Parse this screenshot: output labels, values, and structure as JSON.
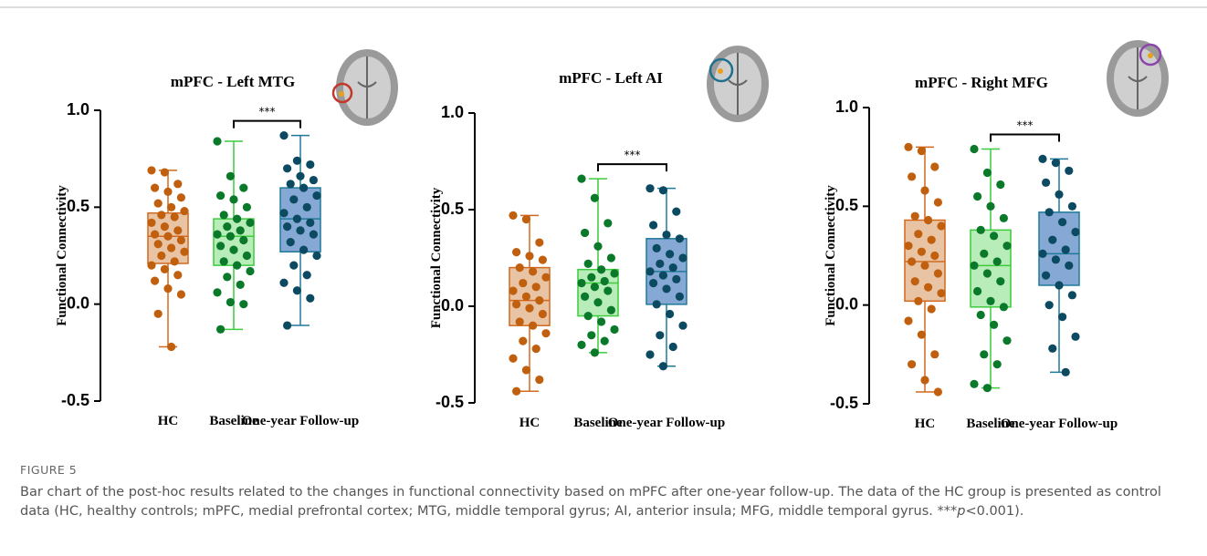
{
  "figure_label": "FIGURE 5",
  "caption": {
    "text": "Bar chart of the post-hoc results related to the changes in functional connectivity based on mPFC after one-year follow-up. The data of the HC group is presented as control data (HC, healthy controls; mPFC, medial prefrontal cortex; MTG, middle temporal gyrus; AI, anterior insula; MFG, middle temporal gyrus. ***",
    "italic": "p",
    "after": "<0.001)."
  },
  "chart_data": [
    {
      "type": "box",
      "title": "mPFC - Left MTG",
      "ylabel": "Functional Connectivity",
      "annotation": "***",
      "categories": [
        "HC",
        "Baseline",
        "One-year Follow-up"
      ],
      "ylim": [
        -0.5,
        1.0
      ],
      "yticks": [
        -0.5,
        {
          "value": 0,
          "label": "0.0"
        },
        0.5,
        {
          "value": 1,
          "label": "1.0"
        }
      ],
      "boxes": [
        {
          "color": "#d2691e",
          "fill": "#e9c4a4",
          "point_color": "#c0600f",
          "min": -0.22,
          "q1": 0.21,
          "median": 0.35,
          "q3": 0.47,
          "max": 0.69,
          "points": [
            0.69,
            0.68,
            0.62,
            0.6,
            0.58,
            0.55,
            0.52,
            0.5,
            0.48,
            0.46,
            0.45,
            0.42,
            0.4,
            0.38,
            0.36,
            0.35,
            0.33,
            0.31,
            0.29,
            0.27,
            0.25,
            0.22,
            0.2,
            0.18,
            0.15,
            0.12,
            0.08,
            0.05,
            -0.05,
            -0.22
          ]
        },
        {
          "color": "#3ccc3c",
          "fill": "#b8ecb8",
          "point_color": "#0a7a2a",
          "min": -0.13,
          "q1": 0.2,
          "median": 0.35,
          "q3": 0.44,
          "max": 0.84,
          "points": [
            0.84,
            0.66,
            0.6,
            0.56,
            0.54,
            0.5,
            0.46,
            0.44,
            0.42,
            0.4,
            0.38,
            0.36,
            0.35,
            0.33,
            0.3,
            0.28,
            0.25,
            0.22,
            0.2,
            0.17,
            0.14,
            0.1,
            0.06,
            0.01,
            0.0,
            -0.13
          ]
        },
        {
          "color": "#1f7a9a",
          "fill": "#86a8d4",
          "point_color": "#0b4a60",
          "min": -0.11,
          "q1": 0.27,
          "median": 0.44,
          "q3": 0.6,
          "max": 0.87,
          "points": [
            0.87,
            0.74,
            0.72,
            0.7,
            0.66,
            0.64,
            0.62,
            0.6,
            0.56,
            0.54,
            0.5,
            0.47,
            0.44,
            0.42,
            0.4,
            0.38,
            0.36,
            0.32,
            0.28,
            0.25,
            0.2,
            0.15,
            0.11,
            0.07,
            0.03,
            -0.11
          ]
        }
      ]
    },
    {
      "type": "box",
      "title": "mPFC - Left AI",
      "ylabel": "Functional Connectivity",
      "annotation": "***",
      "categories": [
        "HC",
        "Baseline",
        "One-year Follow-up"
      ],
      "ylim": [
        -0.5,
        1.0
      ],
      "yticks": [
        -0.5,
        {
          "value": 0,
          "label": "0.0"
        },
        0.5,
        {
          "value": 1,
          "label": "1.0"
        }
      ],
      "boxes": [
        {
          "color": "#d2691e",
          "fill": "#e9c4a4",
          "point_color": "#c0600f",
          "min": -0.44,
          "q1": -0.1,
          "median": 0.03,
          "q3": 0.2,
          "max": 0.47,
          "points": [
            0.47,
            0.45,
            0.33,
            0.28,
            0.26,
            0.24,
            0.2,
            0.18,
            0.15,
            0.12,
            0.1,
            0.08,
            0.05,
            0.03,
            0.01,
            -0.01,
            -0.04,
            -0.08,
            -0.1,
            -0.14,
            -0.18,
            -0.22,
            -0.27,
            -0.33,
            -0.38,
            -0.44
          ]
        },
        {
          "color": "#3ccc3c",
          "fill": "#b8ecb8",
          "point_color": "#0a7a2a",
          "min": -0.24,
          "q1": -0.05,
          "median": 0.12,
          "q3": 0.19,
          "max": 0.66,
          "points": [
            0.66,
            0.56,
            0.43,
            0.38,
            0.31,
            0.25,
            0.22,
            0.19,
            0.17,
            0.15,
            0.13,
            0.12,
            0.1,
            0.08,
            0.05,
            0.02,
            -0.02,
            -0.05,
            -0.08,
            -0.12,
            -0.15,
            -0.18,
            -0.2,
            -0.24
          ]
        },
        {
          "color": "#1f7a9a",
          "fill": "#86a8d4",
          "point_color": "#0b4a60",
          "min": -0.31,
          "q1": 0.01,
          "median": 0.18,
          "q3": 0.35,
          "max": 0.61,
          "points": [
            0.61,
            0.6,
            0.49,
            0.42,
            0.37,
            0.35,
            0.3,
            0.27,
            0.25,
            0.22,
            0.2,
            0.18,
            0.16,
            0.14,
            0.12,
            0.09,
            0.05,
            0.01,
            -0.04,
            -0.1,
            -0.15,
            -0.21,
            -0.25,
            -0.31
          ]
        }
      ]
    },
    {
      "type": "box",
      "title": "mPFC - Right MFG",
      "ylabel": "Functional Connectivity",
      "annotation": "***",
      "categories": [
        "HC",
        "Baseline",
        "One-year Follow-up"
      ],
      "ylim": [
        -0.5,
        1.0
      ],
      "yticks": [
        -0.5,
        {
          "value": 0,
          "label": "0.0"
        },
        0.5,
        {
          "value": 1,
          "label": "1.0"
        }
      ],
      "boxes": [
        {
          "color": "#d2691e",
          "fill": "#e9c4a4",
          "point_color": "#c0600f",
          "min": -0.44,
          "q1": 0.02,
          "median": 0.22,
          "q3": 0.43,
          "max": 0.8,
          "points": [
            0.8,
            0.78,
            0.7,
            0.65,
            0.58,
            0.52,
            0.45,
            0.43,
            0.4,
            0.36,
            0.33,
            0.3,
            0.27,
            0.25,
            0.22,
            0.2,
            0.16,
            0.12,
            0.09,
            0.06,
            0.02,
            -0.02,
            -0.08,
            -0.15,
            -0.25,
            -0.3,
            -0.38,
            -0.44
          ]
        },
        {
          "color": "#3ccc3c",
          "fill": "#b8ecb8",
          "point_color": "#0a7a2a",
          "min": -0.42,
          "q1": -0.01,
          "median": 0.2,
          "q3": 0.38,
          "max": 0.79,
          "points": [
            0.79,
            0.67,
            0.61,
            0.55,
            0.5,
            0.44,
            0.38,
            0.35,
            0.3,
            0.26,
            0.22,
            0.2,
            0.16,
            0.12,
            0.07,
            0.02,
            -0.01,
            -0.05,
            -0.1,
            -0.18,
            -0.25,
            -0.3,
            -0.4,
            -0.42
          ]
        },
        {
          "color": "#1f7a9a",
          "fill": "#86a8d4",
          "point_color": "#0b4a60",
          "min": -0.34,
          "q1": 0.1,
          "median": 0.26,
          "q3": 0.47,
          "max": 0.74,
          "points": [
            0.74,
            0.72,
            0.68,
            0.62,
            0.56,
            0.5,
            0.47,
            0.42,
            0.37,
            0.33,
            0.28,
            0.26,
            0.23,
            0.2,
            0.15,
            0.1,
            0.05,
            0.0,
            -0.06,
            -0.16,
            -0.22,
            -0.34
          ]
        }
      ]
    }
  ]
}
